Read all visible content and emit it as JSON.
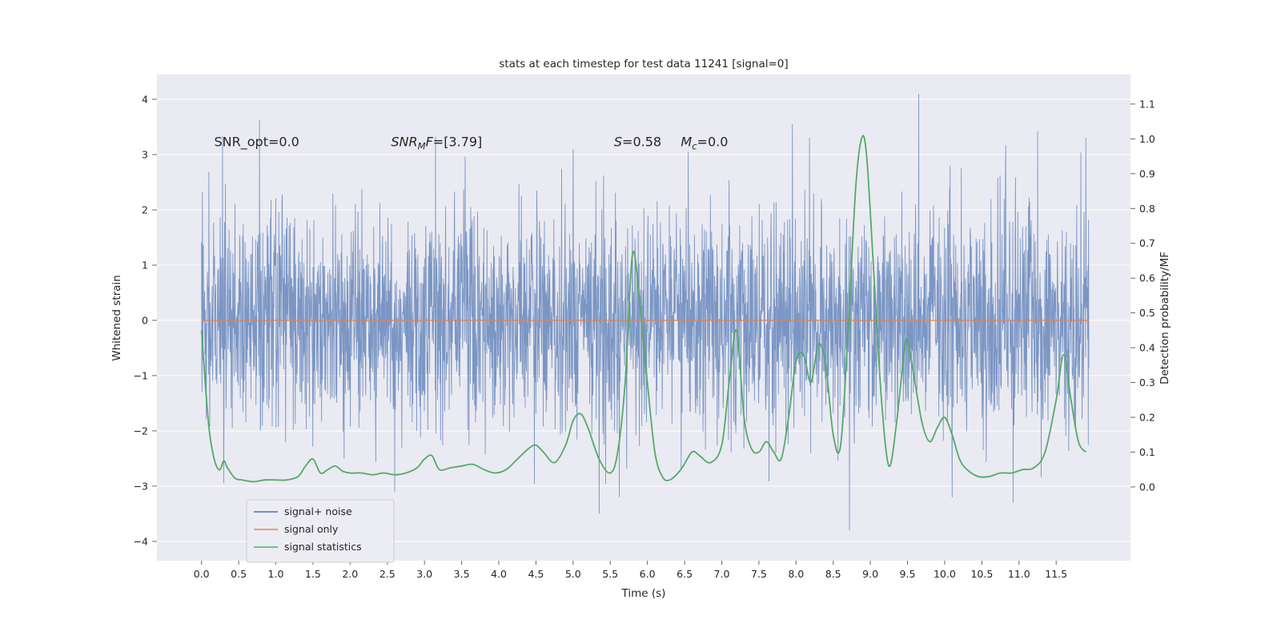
{
  "title": "stats at each timestep for test data 11241 [signal=0]",
  "axes": {
    "xlabel": "Time (s)",
    "ylabel_left": "Whitened strain",
    "ylabel_right": "Detection probability/MF",
    "xlim": [
      -0.6,
      12.5
    ],
    "ylim_left": [
      -4.35,
      4.45
    ],
    "ylim_right": [
      -0.212,
      1.185
    ],
    "x_ticks": {
      "values": [
        0,
        0.5,
        1,
        1.5,
        2,
        2.5,
        3,
        3.5,
        4,
        4.5,
        5,
        5.5,
        6,
        6.5,
        7,
        7.5,
        8,
        8.5,
        9,
        9.5,
        10,
        10.5,
        11,
        11.5
      ],
      "labels": [
        "0.0",
        "0.5",
        "1.0",
        "1.5",
        "2.0",
        "2.5",
        "3.0",
        "3.5",
        "4.0",
        "4.5",
        "5.0",
        "5.5",
        "6.0",
        "6.5",
        "7.0",
        "7.5",
        "8.0",
        "8.5",
        "9.0",
        "9.5",
        "10.0",
        "10.5",
        "11.0",
        "11.5"
      ]
    },
    "y_ticks_left": {
      "values": [
        -4,
        -3,
        -2,
        -1,
        0,
        1,
        2,
        3,
        4
      ],
      "labels": [
        "−4",
        "−3",
        "−2",
        "−1",
        "0",
        "1",
        "2",
        "3",
        "4"
      ]
    },
    "y_ticks_right": {
      "values": [
        0,
        0.1,
        0.2,
        0.3,
        0.4,
        0.5,
        0.6,
        0.7,
        0.8,
        0.9,
        1.0,
        1.1
      ],
      "labels": [
        "0.0",
        "0.1",
        "0.2",
        "0.3",
        "0.4",
        "0.5",
        "0.6",
        "0.7",
        "0.8",
        "0.9",
        "1.0",
        "1.1"
      ]
    }
  },
  "annotations": [
    {
      "t": 0.17,
      "y": 3.15,
      "parts": [
        {
          "text": "SNR_opt=0.0"
        }
      ]
    },
    {
      "t": 2.55,
      "y": 3.15,
      "parts": [
        {
          "text": "SNR",
          "italic": true
        },
        {
          "text": "M",
          "italic": true,
          "sub": true
        },
        {
          "text": "F",
          "italic": true
        },
        {
          "text": "=[3.79]"
        }
      ]
    },
    {
      "t": 5.55,
      "y": 3.15,
      "parts": [
        {
          "text": "S",
          "italic": true
        },
        {
          "text": "=0.58"
        }
      ]
    },
    {
      "t": 6.45,
      "y": 3.15,
      "parts": [
        {
          "text": "M",
          "italic": true
        },
        {
          "text": "c",
          "italic": true,
          "sub": true
        },
        {
          "text": "=0.0"
        }
      ]
    }
  ],
  "legend": {
    "items": [
      {
        "label": "signal+ noise",
        "color_key": "blue"
      },
      {
        "label": "signal only",
        "color_key": "orange"
      },
      {
        "label": "signal statistics",
        "color_key": "green"
      }
    ]
  },
  "colors": {
    "blue": "#4c72b0",
    "orange": "#dd8452",
    "green": "#55a868",
    "axes_bg": "#eaeaf2",
    "grid": "#ffffff",
    "text": "#262626",
    "legend_bg": "#ececf3",
    "legend_border": "#cccccc"
  },
  "chart_data": {
    "type": "line",
    "title": "stats at each timestep for test data 11241 [signal=0]",
    "xlabel": "Time (s)",
    "ylabel_left": "Whitened strain",
    "ylabel_right": "Detection probability/MF",
    "xlim": [
      -0.6,
      12.5
    ],
    "ylim_left": [
      -4.35,
      4.45
    ],
    "ylim_right": [
      -0.212,
      1.185
    ],
    "grid": "horizontal-white",
    "legend_position": "lower-left",
    "series": [
      {
        "name": "signal+ noise",
        "yaxis": "left",
        "kind": "noise",
        "color_key": "blue",
        "generator": {
          "seed": 11241,
          "n": 3000,
          "sigma": 0.98,
          "t_start": 0.0,
          "t_end": 11.94
        },
        "outliers": [
          [
            0.78,
            3.62
          ],
          [
            3.15,
            3.32
          ],
          [
            5.0,
            3.1
          ],
          [
            6.55,
            3.05
          ],
          [
            7.95,
            3.55
          ],
          [
            8.18,
            3.3
          ],
          [
            9.65,
            4.1
          ],
          [
            11.25,
            3.42
          ],
          [
            11.9,
            3.3
          ],
          [
            0.3,
            -2.95
          ],
          [
            2.6,
            -3.1
          ],
          [
            5.35,
            -3.5
          ],
          [
            5.62,
            -3.2
          ],
          [
            8.72,
            -3.8
          ],
          [
            10.1,
            -3.2
          ],
          [
            10.92,
            -3.3
          ]
        ]
      },
      {
        "name": "signal only",
        "yaxis": "left",
        "kind": "constant",
        "color_key": "orange",
        "value": 0.0,
        "t_start": 0.0,
        "t_end": 11.94
      },
      {
        "name": "signal statistics",
        "yaxis": "right",
        "kind": "curve",
        "color_key": "green",
        "points": [
          [
            0.0,
            0.45
          ],
          [
            0.05,
            0.3
          ],
          [
            0.1,
            0.17
          ],
          [
            0.15,
            0.1
          ],
          [
            0.2,
            0.06
          ],
          [
            0.25,
            0.05
          ],
          [
            0.3,
            0.075
          ],
          [
            0.35,
            0.055
          ],
          [
            0.45,
            0.025
          ],
          [
            0.55,
            0.02
          ],
          [
            0.7,
            0.015
          ],
          [
            0.85,
            0.02
          ],
          [
            1.0,
            0.02
          ],
          [
            1.15,
            0.02
          ],
          [
            1.3,
            0.03
          ],
          [
            1.4,
            0.06
          ],
          [
            1.5,
            0.08
          ],
          [
            1.6,
            0.04
          ],
          [
            1.7,
            0.05
          ],
          [
            1.8,
            0.06
          ],
          [
            1.9,
            0.045
          ],
          [
            2.0,
            0.04
          ],
          [
            2.15,
            0.04
          ],
          [
            2.3,
            0.035
          ],
          [
            2.45,
            0.04
          ],
          [
            2.6,
            0.035
          ],
          [
            2.75,
            0.04
          ],
          [
            2.9,
            0.055
          ],
          [
            3.0,
            0.08
          ],
          [
            3.1,
            0.09
          ],
          [
            3.2,
            0.05
          ],
          [
            3.35,
            0.055
          ],
          [
            3.5,
            0.06
          ],
          [
            3.65,
            0.065
          ],
          [
            3.8,
            0.05
          ],
          [
            3.95,
            0.04
          ],
          [
            4.1,
            0.05
          ],
          [
            4.25,
            0.08
          ],
          [
            4.4,
            0.11
          ],
          [
            4.5,
            0.12
          ],
          [
            4.6,
            0.1
          ],
          [
            4.75,
            0.07
          ],
          [
            4.9,
            0.12
          ],
          [
            5.0,
            0.19
          ],
          [
            5.1,
            0.21
          ],
          [
            5.2,
            0.17
          ],
          [
            5.35,
            0.08
          ],
          [
            5.5,
            0.04
          ],
          [
            5.6,
            0.1
          ],
          [
            5.7,
            0.3
          ],
          [
            5.8,
            0.67
          ],
          [
            5.9,
            0.52
          ],
          [
            6.0,
            0.3
          ],
          [
            6.1,
            0.1
          ],
          [
            6.2,
            0.03
          ],
          [
            6.3,
            0.02
          ],
          [
            6.45,
            0.05
          ],
          [
            6.6,
            0.1
          ],
          [
            6.7,
            0.09
          ],
          [
            6.85,
            0.07
          ],
          [
            7.0,
            0.12
          ],
          [
            7.1,
            0.3
          ],
          [
            7.2,
            0.45
          ],
          [
            7.3,
            0.2
          ],
          [
            7.4,
            0.11
          ],
          [
            7.5,
            0.1
          ],
          [
            7.6,
            0.13
          ],
          [
            7.7,
            0.1
          ],
          [
            7.8,
            0.08
          ],
          [
            7.9,
            0.2
          ],
          [
            8.0,
            0.36
          ],
          [
            8.1,
            0.38
          ],
          [
            8.2,
            0.3
          ],
          [
            8.3,
            0.41
          ],
          [
            8.4,
            0.35
          ],
          [
            8.5,
            0.15
          ],
          [
            8.6,
            0.12
          ],
          [
            8.7,
            0.45
          ],
          [
            8.8,
            0.85
          ],
          [
            8.88,
            1.0
          ],
          [
            8.95,
            0.95
          ],
          [
            9.05,
            0.6
          ],
          [
            9.15,
            0.25
          ],
          [
            9.25,
            0.06
          ],
          [
            9.35,
            0.18
          ],
          [
            9.45,
            0.38
          ],
          [
            9.5,
            0.42
          ],
          [
            9.6,
            0.3
          ],
          [
            9.7,
            0.18
          ],
          [
            9.8,
            0.13
          ],
          [
            9.9,
            0.17
          ],
          [
            10.0,
            0.2
          ],
          [
            10.1,
            0.15
          ],
          [
            10.2,
            0.08
          ],
          [
            10.3,
            0.05
          ],
          [
            10.45,
            0.03
          ],
          [
            10.6,
            0.03
          ],
          [
            10.75,
            0.04
          ],
          [
            10.9,
            0.04
          ],
          [
            11.05,
            0.05
          ],
          [
            11.2,
            0.055
          ],
          [
            11.35,
            0.1
          ],
          [
            11.5,
            0.25
          ],
          [
            11.6,
            0.38
          ],
          [
            11.7,
            0.25
          ],
          [
            11.8,
            0.13
          ],
          [
            11.9,
            0.1
          ]
        ]
      }
    ]
  }
}
